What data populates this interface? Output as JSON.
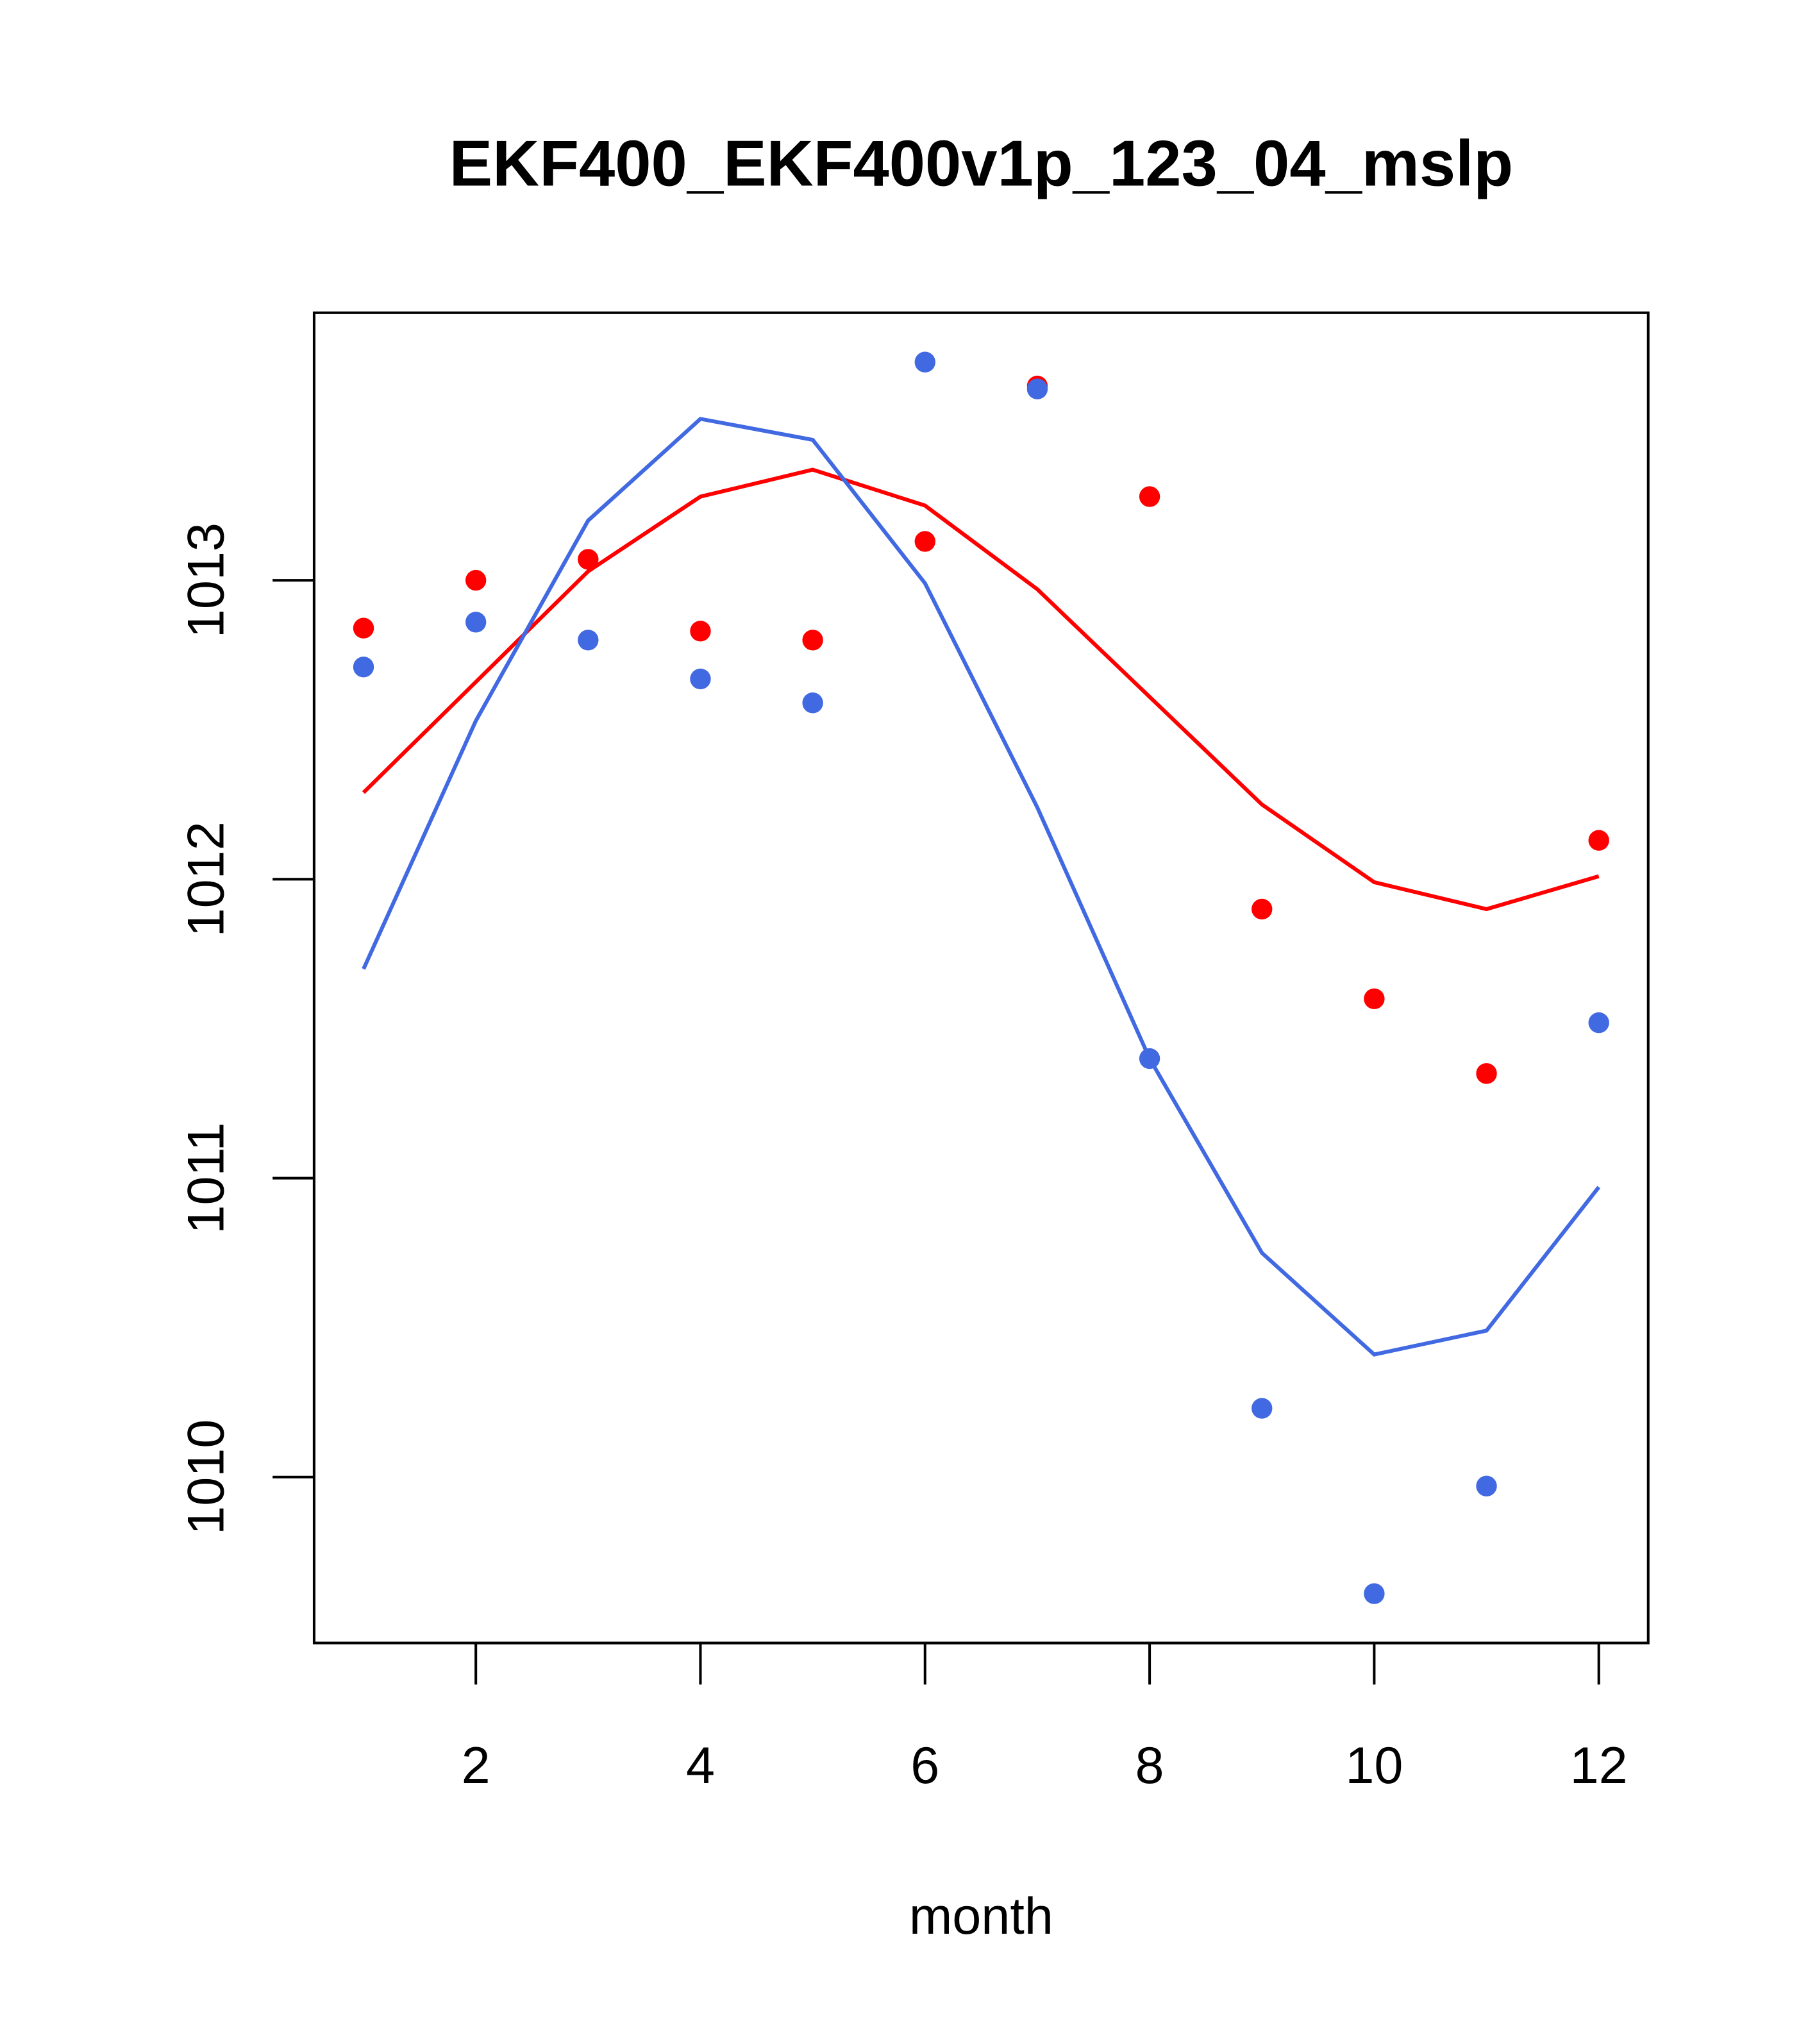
{
  "chart_data": {
    "type": "line",
    "title": "EKF400_EKF400v1p_123_04_mslp",
    "xlabel": "month",
    "ylabel": "",
    "xlim": [
      0.56,
      12.44
    ],
    "ylim": [
      1009.445,
      1013.895
    ],
    "x_ticks": [
      2,
      4,
      6,
      8,
      10,
      12
    ],
    "x_tick_labels": [
      "2",
      "4",
      "6",
      "8",
      "10",
      "12"
    ],
    "y_ticks": [
      1010,
      1011,
      1012,
      1013
    ],
    "y_tick_labels": [
      "1010",
      "1011",
      "1012",
      "1013"
    ],
    "grid": false,
    "x": [
      1,
      2,
      3,
      4,
      5,
      6,
      7,
      8,
      9,
      10,
      11,
      12
    ],
    "series": [
      {
        "name": "red-points",
        "kind": "points",
        "color": "#ff0000",
        "values": [
          1012.84,
          1013.0,
          1013.07,
          1012.83,
          1012.8,
          1013.13,
          1013.65,
          1013.28,
          1011.9,
          1011.6,
          1011.35,
          1012.13
        ]
      },
      {
        "name": "blue-points",
        "kind": "points",
        "color": "#4169e1",
        "values": [
          1012.71,
          1012.86,
          1012.8,
          1012.67,
          1012.59,
          1013.73,
          1013.64,
          1011.4,
          1010.23,
          1009.61,
          1009.97,
          1011.52
        ]
      },
      {
        "name": "red-line",
        "kind": "line",
        "color": "#ff0000",
        "values": [
          1012.29,
          1012.66,
          1013.03,
          1013.28,
          1013.37,
          1013.25,
          1012.97,
          1012.61,
          1012.25,
          1011.99,
          1011.9,
          1012.01
        ]
      },
      {
        "name": "blue-line",
        "kind": "line",
        "color": "#4169e1",
        "values": [
          1011.7,
          1012.53,
          1013.2,
          1013.54,
          1013.47,
          1012.99,
          1012.24,
          1011.4,
          1010.75,
          1010.41,
          1010.49,
          1010.97
        ]
      }
    ]
  }
}
